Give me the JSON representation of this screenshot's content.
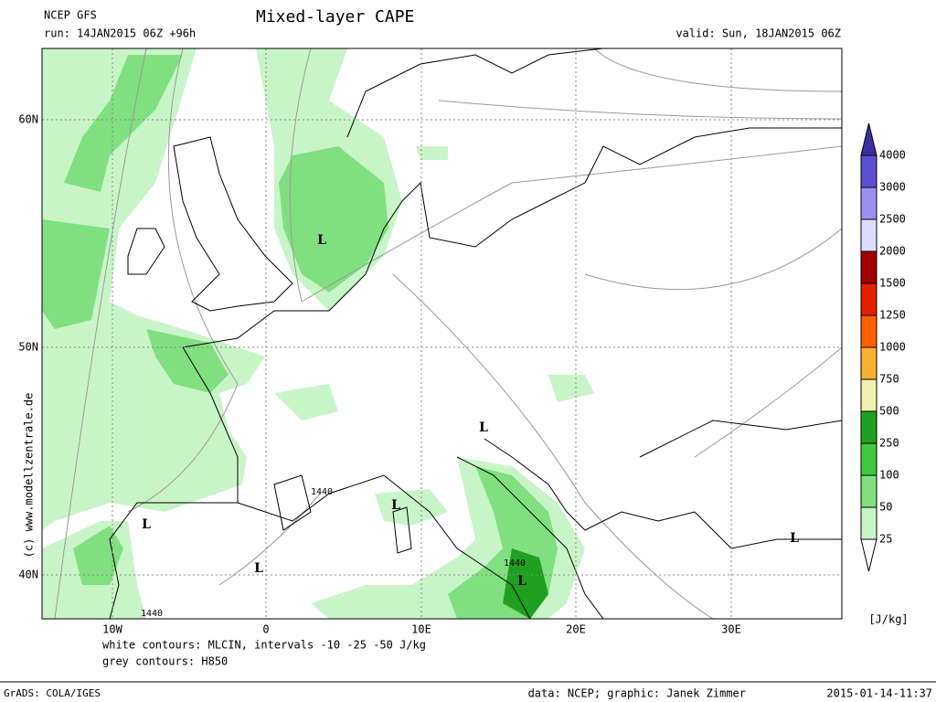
{
  "header": {
    "model": "NCEP GFS",
    "run": "run: 14JAN2015 06Z +96h",
    "title": "Mixed-layer CAPE",
    "valid": "valid: Sun, 18JAN2015 06Z"
  },
  "map": {
    "lon_labels": [
      "10W",
      "0",
      "10E",
      "20E",
      "30E"
    ],
    "lat_labels": [
      "60N",
      "50N",
      "40N"
    ],
    "lows": [
      "L",
      "L",
      "L",
      "L",
      "L",
      "L",
      "L"
    ],
    "contour_labels": [
      "1440",
      "1440",
      "1440"
    ]
  },
  "colorbar": {
    "levels": [
      4000,
      3000,
      2500,
      2000,
      1500,
      1250,
      1000,
      750,
      500,
      250,
      100,
      50,
      25
    ],
    "unit": "[J/kg]"
  },
  "notes": [
    "white contours: MLCIN, intervals -10 -25 -50 J/kg",
    "grey contours: H850"
  ],
  "credit": "(c) www.modellzentrale.de",
  "footer": {
    "left": "GrADS: COLA/IGES",
    "center": "data: NCEP; graphic: Janek Zimmer",
    "right": "2015-01-14-11:37"
  }
}
